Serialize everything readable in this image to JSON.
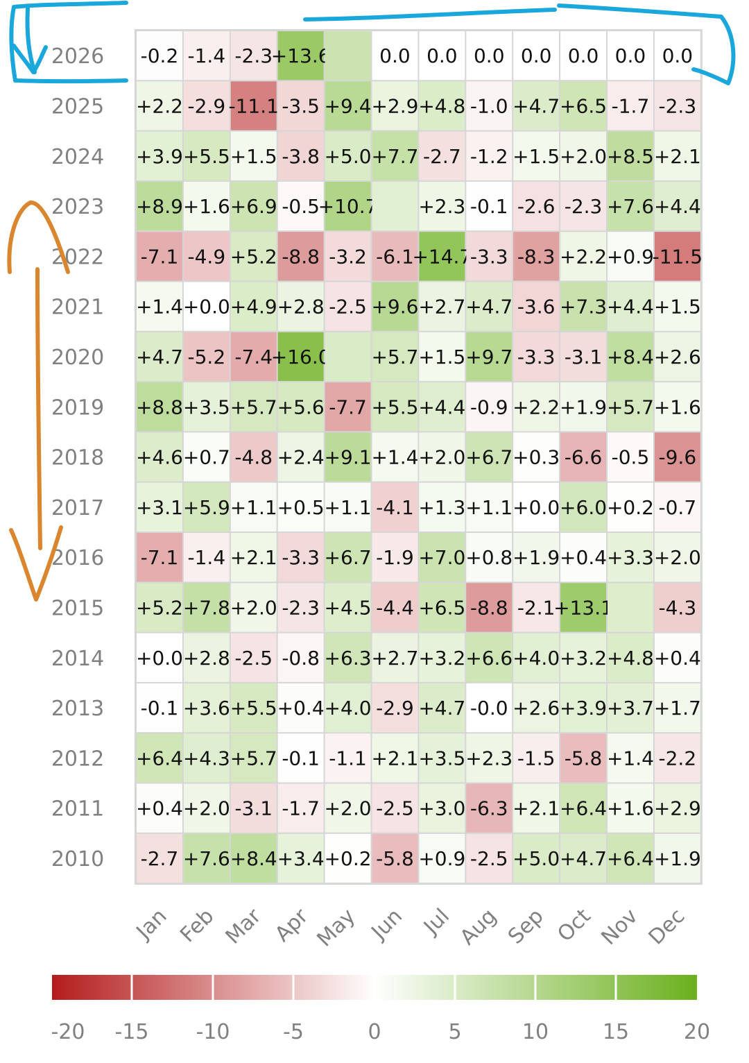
{
  "chart_data": {
    "type": "heatmap",
    "months": [
      "Jan",
      "Feb",
      "Mar",
      "Apr",
      "May",
      "Jun",
      "Jul",
      "Aug",
      "Sep",
      "Oct",
      "Nov",
      "Dec"
    ],
    "colorbar": {
      "range": [
        -20,
        20
      ],
      "ticks": [
        "-20",
        "-15",
        "-10",
        "-5",
        "0",
        "5",
        "10",
        "15",
        "20"
      ],
      "colors": {
        "negative": "#b41c1c",
        "zero": "#ffffff",
        "positive": "#6bb01e"
      }
    },
    "rows": [
      {
        "year": "2026",
        "values": [
          -0.2,
          -1.4,
          -2.3,
          13.6,
          7.0,
          0.0,
          0.0,
          0.0,
          0.0,
          0.0,
          0.0,
          0.0
        ],
        "labels": [
          "-0.2",
          "-1.4",
          "-2.3",
          "+13.6",
          "",
          "0.0",
          "0.0",
          "0.0",
          "0.0",
          "0.0",
          "0.0",
          "0.0"
        ]
      },
      {
        "year": "2025",
        "values": [
          2.2,
          -2.9,
          -11.1,
          -3.5,
          9.4,
          2.9,
          4.8,
          -1.0,
          4.7,
          6.5,
          -1.7,
          -2.3
        ],
        "labels": [
          "+2.2",
          "-2.9",
          "-11.1",
          "-3.5",
          "+9.4",
          "+2.9",
          "+4.8",
          "-1.0",
          "+4.7",
          "+6.5",
          "-1.7",
          "-2.3"
        ]
      },
      {
        "year": "2024",
        "values": [
          3.9,
          5.5,
          1.5,
          -3.8,
          5.0,
          7.7,
          -2.7,
          -1.2,
          1.5,
          2.0,
          8.5,
          2.1
        ],
        "labels": [
          "+3.9",
          "+5.5",
          "+1.5",
          "-3.8",
          "+5.0",
          "+7.7",
          "-2.7",
          "-1.2",
          "+1.5",
          "+2.0",
          "+8.5",
          "+2.1"
        ]
      },
      {
        "year": "2023",
        "values": [
          8.9,
          1.6,
          6.9,
          -0.5,
          10.7,
          4.0,
          2.3,
          -0.1,
          -2.6,
          -2.3,
          7.6,
          4.4
        ],
        "labels": [
          "+8.9",
          "+1.6",
          "+6.9",
          "-0.5",
          "+10.7",
          "",
          "+2.3",
          "-0.1",
          "-2.6",
          "-2.3",
          "+7.6",
          "+4.4"
        ]
      },
      {
        "year": "2022",
        "values": [
          -7.1,
          -4.9,
          5.2,
          -8.8,
          -3.2,
          -6.1,
          14.7,
          -3.3,
          -8.3,
          2.2,
          0.9,
          -11.5
        ],
        "labels": [
          "-7.1",
          "-4.9",
          "+5.2",
          "-8.8",
          "-3.2",
          "-6.1",
          "+14.7",
          "-3.3",
          "-8.3",
          "+2.2",
          "+0.9",
          "-11.5"
        ]
      },
      {
        "year": "2021",
        "values": [
          1.4,
          0.0,
          4.9,
          2.8,
          -2.5,
          9.6,
          2.7,
          4.7,
          -3.6,
          7.3,
          4.4,
          1.5
        ],
        "labels": [
          "+1.4",
          "+0.0",
          "+4.9",
          "+2.8",
          "-2.5",
          "+9.6",
          "+2.7",
          "+4.7",
          "-3.6",
          "+7.3",
          "+4.4",
          "+1.5"
        ]
      },
      {
        "year": "2020",
        "values": [
          4.7,
          -5.2,
          -7.4,
          16.0,
          5.0,
          5.7,
          1.5,
          9.7,
          -3.3,
          -3.1,
          8.4,
          2.6
        ],
        "labels": [
          "+4.7",
          "-5.2",
          "-7.4",
          "+16.0",
          "",
          "+5.7",
          "+1.5",
          "+9.7",
          "-3.3",
          "-3.1",
          "+8.4",
          "+2.6"
        ]
      },
      {
        "year": "2019",
        "values": [
          8.8,
          3.5,
          5.7,
          5.6,
          -7.7,
          5.5,
          4.4,
          -0.9,
          2.2,
          1.9,
          5.7,
          1.6
        ],
        "labels": [
          "+8.8",
          "+3.5",
          "+5.7",
          "+5.6",
          "-7.7",
          "+5.5",
          "+4.4",
          "-0.9",
          "+2.2",
          "+1.9",
          "+5.7",
          "+1.6"
        ]
      },
      {
        "year": "2018",
        "values": [
          4.6,
          0.7,
          -4.8,
          2.4,
          9.1,
          1.4,
          2.0,
          6.7,
          0.3,
          -6.6,
          -0.5,
          -9.6
        ],
        "labels": [
          "+4.6",
          "+0.7",
          "-4.8",
          "+2.4",
          "+9.1",
          "+1.4",
          "+2.0",
          "+6.7",
          "+0.3",
          "-6.6",
          "-0.5",
          "-9.6"
        ]
      },
      {
        "year": "2017",
        "values": [
          3.1,
          5.9,
          1.1,
          0.5,
          1.1,
          -4.1,
          1.3,
          1.1,
          0.0,
          6.0,
          0.2,
          -0.7
        ],
        "labels": [
          "+3.1",
          "+5.9",
          "+1.1",
          "+0.5",
          "+1.1",
          "-4.1",
          "+1.3",
          "+1.1",
          "+0.0",
          "+6.0",
          "+0.2",
          "-0.7"
        ]
      },
      {
        "year": "2016",
        "values": [
          -7.1,
          -1.4,
          2.1,
          -3.3,
          6.7,
          -1.9,
          7.0,
          0.8,
          1.9,
          0.4,
          3.3,
          2.0
        ],
        "labels": [
          "-7.1",
          "-1.4",
          "+2.1",
          "-3.3",
          "+6.7",
          "-1.9",
          "+7.0",
          "+0.8",
          "+1.9",
          "+0.4",
          "+3.3",
          "+2.0"
        ]
      },
      {
        "year": "2015",
        "values": [
          5.2,
          7.8,
          2.0,
          -2.3,
          4.5,
          -4.4,
          6.5,
          -8.8,
          -2.1,
          13.1,
          4.5,
          -4.3
        ],
        "labels": [
          "+5.2",
          "+7.8",
          "+2.0",
          "-2.3",
          "+4.5",
          "-4.4",
          "+6.5",
          "-8.8",
          "-2.1",
          "+13.1",
          "",
          "-4.3"
        ]
      },
      {
        "year": "2014",
        "values": [
          0.0,
          2.8,
          -2.5,
          -0.8,
          6.3,
          2.7,
          3.2,
          6.6,
          4.0,
          3.2,
          4.8,
          0.4
        ],
        "labels": [
          "+0.0",
          "+2.8",
          "-2.5",
          "-0.8",
          "+6.3",
          "+2.7",
          "+3.2",
          "+6.6",
          "+4.0",
          "+3.2",
          "+4.8",
          "+0.4"
        ]
      },
      {
        "year": "2013",
        "values": [
          -0.1,
          3.6,
          5.5,
          0.4,
          4.0,
          -2.9,
          4.7,
          0.0,
          2.6,
          3.9,
          3.7,
          1.7
        ],
        "labels": [
          "-0.1",
          "+3.6",
          "+5.5",
          "+0.4",
          "+4.0",
          "-2.9",
          "+4.7",
          "-0.0",
          "+2.6",
          "+3.9",
          "+3.7",
          "+1.7"
        ]
      },
      {
        "year": "2012",
        "values": [
          6.4,
          4.3,
          5.7,
          -0.1,
          -1.1,
          2.1,
          3.5,
          2.3,
          -1.5,
          -5.8,
          1.4,
          -2.2
        ],
        "labels": [
          "+6.4",
          "+4.3",
          "+5.7",
          "-0.1",
          "-1.1",
          "+2.1",
          "+3.5",
          "+2.3",
          "-1.5",
          "-5.8",
          "+1.4",
          "-2.2"
        ]
      },
      {
        "year": "2011",
        "values": [
          0.4,
          2.0,
          -3.1,
          -1.7,
          2.0,
          -2.5,
          3.0,
          -6.3,
          2.1,
          6.4,
          1.6,
          2.9
        ],
        "labels": [
          "+0.4",
          "+2.0",
          "-3.1",
          "-1.7",
          "+2.0",
          "-2.5",
          "+3.0",
          "-6.3",
          "+2.1",
          "+6.4",
          "+1.6",
          "+2.9"
        ]
      },
      {
        "year": "2010",
        "values": [
          -2.7,
          7.6,
          8.4,
          3.4,
          0.2,
          -5.8,
          0.9,
          -2.5,
          5.0,
          4.7,
          6.4,
          1.9
        ],
        "labels": [
          "-2.7",
          "+7.6",
          "+8.4",
          "+3.4",
          "+0.2",
          "-5.8",
          "+0.9",
          "-2.5",
          "+5.0",
          "+4.7",
          "+6.4",
          "+1.9"
        ]
      }
    ]
  },
  "annotations": {
    "highlight_color": "#1aa7dc",
    "arrow_color": "#d9862f"
  }
}
